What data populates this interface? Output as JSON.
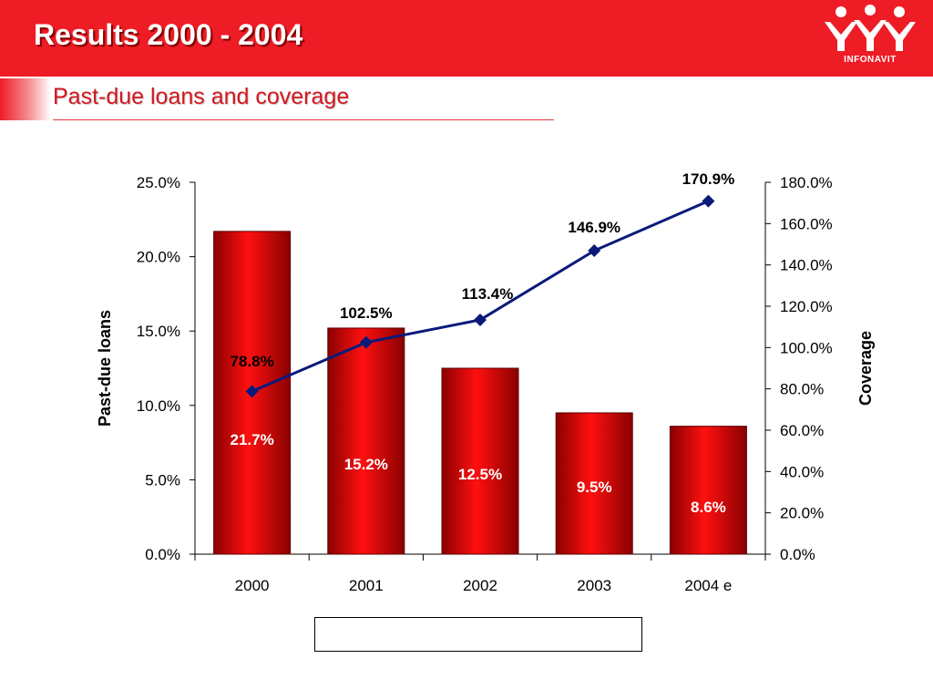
{
  "header": {
    "title": "Results 2000 - 2004",
    "logo_text": "INFONAVIT",
    "accent_color": "#ee1c25"
  },
  "subtitle": "Past-due loans and coverage",
  "chart_data": {
    "type": "bar",
    "categories": [
      "2000",
      "2001",
      "2002",
      "2003",
      "2004 e"
    ],
    "series": [
      {
        "name": "Past-due loans",
        "kind": "bar",
        "axis": "left",
        "values": [
          21.7,
          15.2,
          12.5,
          9.5,
          8.6
        ],
        "labels": [
          "21.7%",
          "15.2%",
          "12.5%",
          "9.5%",
          "8.6%"
        ],
        "color": "#e00000"
      },
      {
        "name": "Coverage",
        "kind": "line",
        "axis": "right",
        "values": [
          78.8,
          102.5,
          113.4,
          146.9,
          170.9
        ],
        "labels": [
          "78.8%",
          "102.5%",
          "113.4%",
          "146.9%",
          "170.9%"
        ],
        "color": "#0a1a7a"
      }
    ],
    "ylabel": "Past-due loans",
    "y2label": "Coverage",
    "ylim": [
      0,
      25
    ],
    "y2lim": [
      0,
      180
    ],
    "yticks": [
      "0.0%",
      "5.0%",
      "10.0%",
      "15.0%",
      "20.0%",
      "25.0%"
    ],
    "y2ticks": [
      "0.0%",
      "20.0%",
      "40.0%",
      "60.0%",
      "80.0%",
      "100.0%",
      "120.0%",
      "140.0%",
      "160.0%",
      "180.0%"
    ],
    "grid": false,
    "legend": "bottom"
  }
}
